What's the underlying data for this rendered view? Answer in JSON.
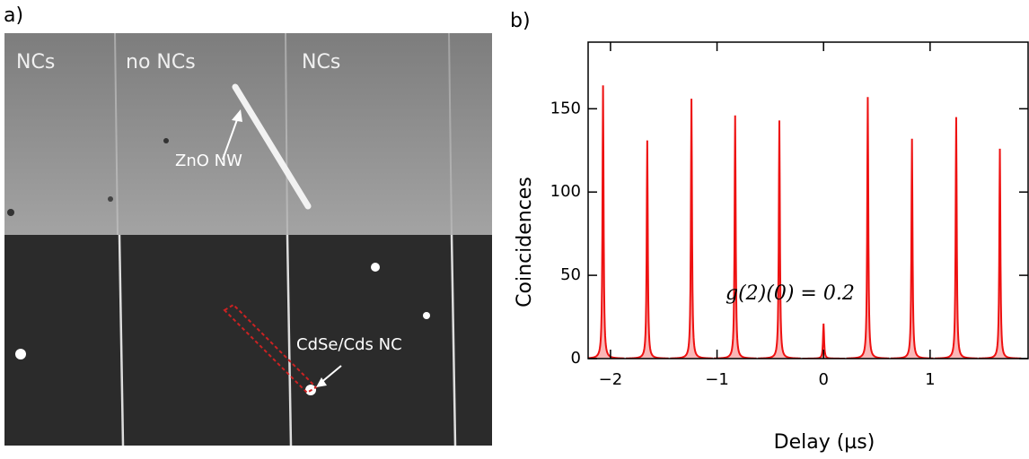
{
  "panel_a": {
    "label": "a)",
    "region_labels": [
      "NCs",
      "no NCs",
      "NCs"
    ],
    "nanowire_label": "ZnO NW",
    "nanocrystal_label": "CdSe/Cds NC"
  },
  "chart_data": {
    "type": "line",
    "panel_label": "b)",
    "x_label": "Delay (µs)",
    "y_label": "Coincidences",
    "annotation": "g(2)(0) = 0.2",
    "color": "#ee1111",
    "x": [
      -2.07,
      -1.655,
      -1.24,
      -0.83,
      -0.415,
      0,
      0.415,
      0.83,
      1.245,
      1.655
    ],
    "values": [
      164,
      131,
      156,
      146,
      143,
      21,
      157,
      132,
      145,
      126
    ],
    "xlim": [
      -2.21,
      1.92
    ],
    "ylim": [
      0,
      190
    ],
    "xticks": [
      {
        "value": -2,
        "label": "−2"
      },
      {
        "value": -1,
        "label": "−1"
      },
      0,
      1
    ],
    "yticks": [
      0,
      50,
      100,
      150
    ]
  }
}
